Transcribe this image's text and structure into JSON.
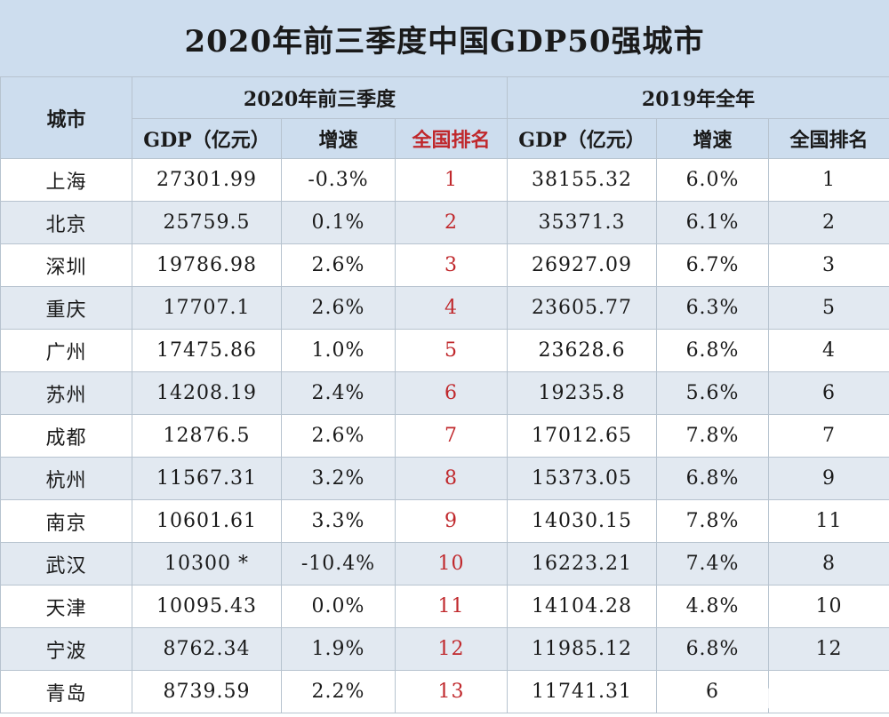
{
  "title": "2020年前三季度中国GDP50强城市",
  "headers": {
    "city": "城市",
    "group_2020": "2020年前三季度",
    "group_2019": "2019年全年",
    "gdp_2020": "GDP（亿元）",
    "growth_2020": "增速",
    "rank_2020": "全国排名",
    "gdp_2019": "GDP（亿元）",
    "growth_2019": "增速",
    "rank_2019": "全国排名"
  },
  "colors": {
    "header_bg": "#cdddee",
    "stripe_bg": "#e2e9f1",
    "rank_red": "#c0282c"
  },
  "rows": [
    {
      "city": "上海",
      "gdp2020": "27301.99",
      "g2020": "-0.3%",
      "r2020": "1",
      "gdp2019": "38155.32",
      "g2019": "6.0%",
      "r2019": "1"
    },
    {
      "city": "北京",
      "gdp2020": "25759.5",
      "g2020": "0.1%",
      "r2020": "2",
      "gdp2019": "35371.3",
      "g2019": "6.1%",
      "r2019": "2"
    },
    {
      "city": "深圳",
      "gdp2020": "19786.98",
      "g2020": "2.6%",
      "r2020": "3",
      "gdp2019": "26927.09",
      "g2019": "6.7%",
      "r2019": "3"
    },
    {
      "city": "重庆",
      "gdp2020": "17707.1",
      "g2020": "2.6%",
      "r2020": "4",
      "gdp2019": "23605.77",
      "g2019": "6.3%",
      "r2019": "5"
    },
    {
      "city": "广州",
      "gdp2020": "17475.86",
      "g2020": "1.0%",
      "r2020": "5",
      "gdp2019": "23628.6",
      "g2019": "6.8%",
      "r2019": "4"
    },
    {
      "city": "苏州",
      "gdp2020": "14208.19",
      "g2020": "2.4%",
      "r2020": "6",
      "gdp2019": "19235.8",
      "g2019": "5.6%",
      "r2019": "6"
    },
    {
      "city": "成都",
      "gdp2020": "12876.5",
      "g2020": "2.6%",
      "r2020": "7",
      "gdp2019": "17012.65",
      "g2019": "7.8%",
      "r2019": "7"
    },
    {
      "city": "杭州",
      "gdp2020": "11567.31",
      "g2020": "3.2%",
      "r2020": "8",
      "gdp2019": "15373.05",
      "g2019": "6.8%",
      "r2019": "9"
    },
    {
      "city": "南京",
      "gdp2020": "10601.61",
      "g2020": "3.3%",
      "r2020": "9",
      "gdp2019": "14030.15",
      "g2019": "7.8%",
      "r2019": "11"
    },
    {
      "city": "武汉",
      "gdp2020": "10300 *",
      "g2020": "-10.4%",
      "r2020": "10",
      "gdp2019": "16223.21",
      "g2019": "7.4%",
      "r2019": "8"
    },
    {
      "city": "天津",
      "gdp2020": "10095.43",
      "g2020": "0.0%",
      "r2020": "11",
      "gdp2019": "14104.28",
      "g2019": "4.8%",
      "r2019": "10"
    },
    {
      "city": "宁波",
      "gdp2020": "8762.34",
      "g2020": "1.9%",
      "r2020": "12",
      "gdp2019": "11985.12",
      "g2019": "6.8%",
      "r2019": "12"
    },
    {
      "city": "青岛",
      "gdp2020": "8739.59",
      "g2020": "2.2%",
      "r2020": "13",
      "gdp2019": "11741.31",
      "g2019": "6",
      "r2019": ""
    }
  ]
}
